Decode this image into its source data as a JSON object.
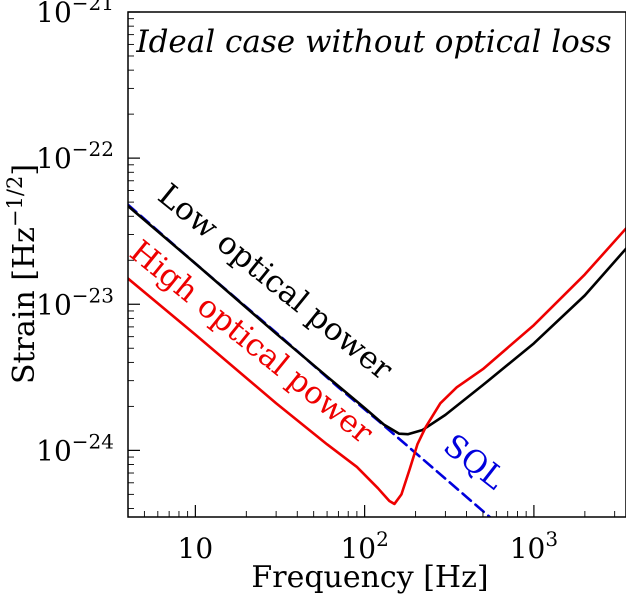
{
  "chart_data": {
    "type": "line",
    "title": "Ideal case without optical loss",
    "xlabel": "Frequency [Hz]",
    "ylabel": "Strain [Hz^{-1/2}]",
    "x_scale": "log",
    "y_scale": "log",
    "xlim": [
      4,
      3500
    ],
    "ylim": [
      3.5e-25,
      1e-21
    ],
    "grid": false,
    "legend": "none",
    "x_ticks": [
      {
        "value": 10,
        "base": "10",
        "exp": ""
      },
      {
        "value": 100,
        "base": "10",
        "exp": "2"
      },
      {
        "value": 1000,
        "base": "10",
        "exp": "3"
      }
    ],
    "y_ticks": [
      {
        "value": 1e-24,
        "base": "10",
        "exp": "−24"
      },
      {
        "value": 1e-23,
        "base": "10",
        "exp": "−23"
      },
      {
        "value": 1e-22,
        "base": "10",
        "exp": "−22"
      },
      {
        "value": 1e-21,
        "base": "10",
        "exp": "−21"
      }
    ],
    "series": [
      {
        "name": "SQL",
        "color": "#0000dd",
        "dash": true,
        "points": [
          [
            4,
            4.8e-23
          ],
          [
            10,
            1.9e-23
          ],
          [
            30,
            6.4e-24
          ],
          [
            70,
            2.7e-24
          ],
          [
            120,
            1.6e-24
          ],
          [
            200,
            9.6e-25
          ],
          [
            400,
            4.8e-25
          ],
          [
            600,
            3.2e-25
          ]
        ]
      },
      {
        "name": "Low optical power",
        "color": "#000000",
        "dash": false,
        "points": [
          [
            4,
            4.7e-23
          ],
          [
            10,
            1.9e-23
          ],
          [
            30,
            6.3e-24
          ],
          [
            60,
            3.2e-24
          ],
          [
            100,
            1.95e-24
          ],
          [
            130,
            1.5e-24
          ],
          [
            160,
            1.3e-24
          ],
          [
            180,
            1.29e-24
          ],
          [
            220,
            1.38e-24
          ],
          [
            300,
            1.75e-24
          ],
          [
            500,
            2.8e-24
          ],
          [
            1000,
            5.4e-24
          ],
          [
            2000,
            1.15e-23
          ],
          [
            3500,
            2.4e-23
          ]
        ]
      },
      {
        "name": "High optical power",
        "color": "#ee0000",
        "dash": false,
        "points": [
          [
            4,
            1.5e-23
          ],
          [
            10,
            6.2e-24
          ],
          [
            30,
            2.1e-24
          ],
          [
            60,
            1.1e-24
          ],
          [
            90,
            7.7e-25
          ],
          [
            120,
            5.5e-25
          ],
          [
            140,
            4.5e-25
          ],
          [
            150,
            4.3e-25
          ],
          [
            165,
            5e-25
          ],
          [
            185,
            7.5e-25
          ],
          [
            205,
            1.1e-24
          ],
          [
            230,
            1.45e-24
          ],
          [
            280,
            2.1e-24
          ],
          [
            350,
            2.7e-24
          ],
          [
            500,
            3.6e-24
          ],
          [
            1000,
            7.2e-24
          ],
          [
            2000,
            1.6e-23
          ],
          [
            3500,
            3.3e-23
          ]
        ]
      }
    ],
    "annotations": [
      {
        "text": "SQL",
        "color": "#0000dd"
      },
      {
        "text": "Low optical power",
        "color": "#000000"
      },
      {
        "text": "High optical power",
        "color": "#ee0000"
      }
    ]
  }
}
